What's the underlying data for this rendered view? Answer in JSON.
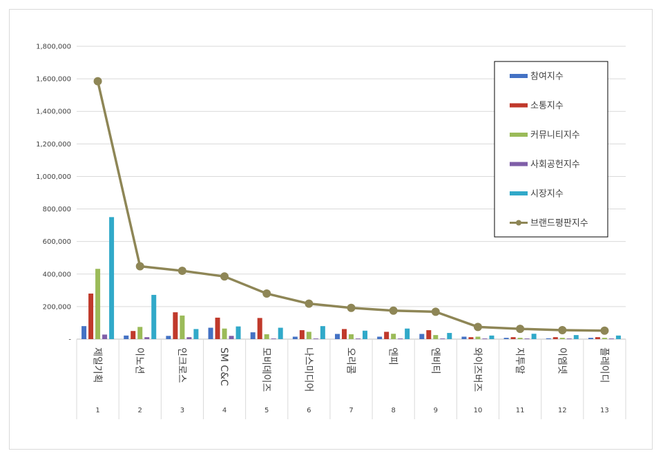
{
  "chart_data": {
    "type": "bar+line",
    "title": "",
    "xlabel": "",
    "ylabel": "",
    "ylim": [
      0,
      1800000
    ],
    "yticks": [
      0,
      200000,
      400000,
      600000,
      800000,
      1000000,
      1200000,
      1400000,
      1600000,
      1800000
    ],
    "ytick_labels": [
      "-",
      "200,000",
      "400,000",
      "600,000",
      "800,000",
      "1,000,000",
      "1,200,000",
      "1,400,000",
      "1,600,000",
      "1,800,000"
    ],
    "grid": true,
    "legend_position": "top-right",
    "categories": [
      {
        "name": "제일기획",
        "rank": "1"
      },
      {
        "name": "이노션",
        "rank": "2"
      },
      {
        "name": "인크로스",
        "rank": "3"
      },
      {
        "name": "SM C&C",
        "rank": "4"
      },
      {
        "name": "모비데이즈",
        "rank": "5"
      },
      {
        "name": "나스미디어",
        "rank": "6"
      },
      {
        "name": "오리콤",
        "rank": "7"
      },
      {
        "name": "엔피",
        "rank": "8"
      },
      {
        "name": "엔비티",
        "rank": "9"
      },
      {
        "name": "와이즈버즈",
        "rank": "10"
      },
      {
        "name": "지투알",
        "rank": "11"
      },
      {
        "name": "이엠넷",
        "rank": "12"
      },
      {
        "name": "플레이디",
        "rank": "13"
      }
    ],
    "series": [
      {
        "name": "참여지수",
        "type": "bar",
        "color": "#4472c4",
        "values": [
          80000,
          22000,
          20000,
          70000,
          42000,
          15000,
          32000,
          15000,
          32000,
          15000,
          8000,
          5000,
          8000
        ]
      },
      {
        "name": "소통지수",
        "type": "bar",
        "color": "#c0392b",
        "values": [
          280000,
          50000,
          165000,
          132000,
          130000,
          55000,
          62000,
          45000,
          55000,
          12000,
          12000,
          12000,
          12000
        ]
      },
      {
        "name": "커뮤니티지수",
        "type": "bar",
        "color": "#9bbb59",
        "values": [
          432000,
          75000,
          145000,
          65000,
          30000,
          45000,
          30000,
          33000,
          25000,
          15000,
          8000,
          8000,
          8000
        ]
      },
      {
        "name": "사회공헌지수",
        "type": "bar",
        "color": "#7f5ea8",
        "values": [
          28000,
          12000,
          12000,
          20000,
          4000,
          4000,
          4000,
          4000,
          4000,
          4000,
          4000,
          4000,
          4000
        ]
      },
      {
        "name": "시장지수",
        "type": "bar",
        "color": "#31a9c9",
        "values": [
          750000,
          272000,
          62000,
          78000,
          70000,
          80000,
          52000,
          65000,
          38000,
          22000,
          33000,
          25000,
          22000
        ]
      },
      {
        "name": "브랜드평판지수",
        "type": "line",
        "color": "#8e8656",
        "values": [
          1585000,
          448000,
          420000,
          385000,
          280000,
          218000,
          192000,
          175000,
          168000,
          75000,
          63000,
          55000,
          52000
        ]
      }
    ]
  }
}
